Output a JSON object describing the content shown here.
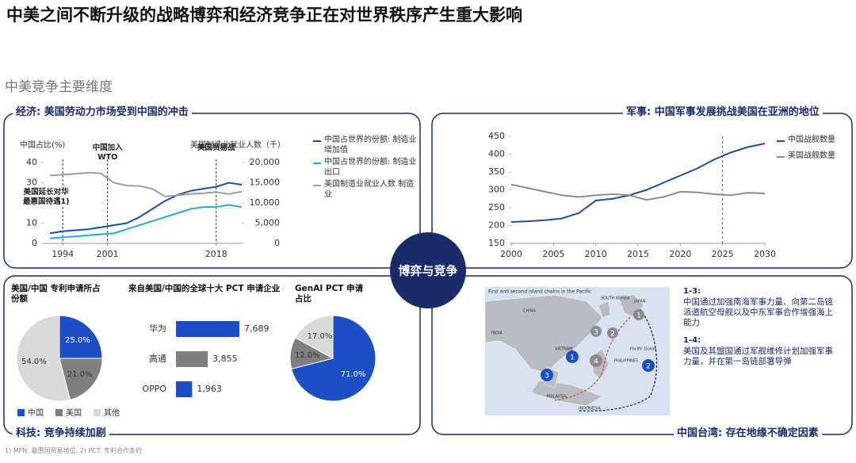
{
  "header": {
    "title": "中美之间不断升级的战略博弈和经济竞争正在对世界秩序产生重大影响",
    "subtitle": "中美竞争主要维度"
  },
  "center": "博弈与竞争",
  "sections": {
    "economy": "经济: 美国劳动力市场受到中国的冲击",
    "military": "军事: 中国军事发展挑战美国在亚洲的地位",
    "technology": "科技: 竞争持续加剧",
    "taiwan": "中国台湾: 存在地缘不确定因素"
  },
  "map": {
    "title": "First and second island chains in the Pacific",
    "places": [
      "CHINA",
      "JAPAN",
      "SOUTH KOREA",
      "INDIA",
      "VIETNAM",
      "PHILIPPINES",
      "MALAYSIA",
      "INDONESIA",
      "Pacific Ocean"
    ],
    "notes": [
      {
        "label": "1-3:",
        "text": "中国通过加强南海军事力量、向第二岛链派遣航空母舰以及中东军事合作增强海上能力"
      },
      {
        "label": "1-4:",
        "text": "美国及其盟国通过军舰维修计划加强军事力量，并在第一岛链部署导弹"
      }
    ]
  },
  "footnote": "1) MFN: 最惠国贸易地位, 2) PCT: 专利合作条约",
  "chart_data": [
    {
      "type": "line",
      "y_label": "中国占比(%)",
      "y2_label": "美国制造业就业人数（千）",
      "x": [
        1992,
        1994,
        1996,
        1998,
        2000,
        2002,
        2004,
        2006,
        2008,
        2010,
        2012,
        2014,
        2016,
        2018,
        2020,
        2022
      ],
      "xlim": [
        1991,
        2022
      ],
      "xticks": [
        1994,
        2001,
        2018
      ],
      "ylim": [
        0,
        40
      ],
      "yticks": [
        0,
        10,
        20,
        30,
        40
      ],
      "y2lim": [
        0,
        20000
      ],
      "y2ticks": [
        0,
        {
          "value": 5000,
          "label": "5,000"
        },
        {
          "value": 10000,
          "label": "10,000"
        },
        {
          "value": 15000,
          "label": "15,000"
        },
        {
          "value": 20000,
          "label": "20,000"
        }
      ],
      "annotations": [
        {
          "text": "美国延长对华最惠国待遇1)",
          "x": 1994
        },
        {
          "text": "中国加入WTO",
          "x": 2001
        },
        {
          "text": "美国贸易战",
          "x": 2018
        }
      ],
      "series": [
        {
          "name": "中国占世界的份额: 制造业增加值",
          "color": "#1f4e9c",
          "values": [
            5,
            6,
            6.5,
            7,
            8,
            9,
            10,
            13,
            17,
            21,
            24,
            26,
            27,
            28,
            30,
            29
          ]
        },
        {
          "name": "中国占世界的份额: 制造业出口",
          "color": "#29a8e0",
          "values": [
            2.5,
            3,
            3.5,
            4,
            4.5,
            5,
            7,
            9,
            11,
            13,
            15,
            17,
            18,
            18,
            19,
            18
          ]
        },
        {
          "name": "美国制造业就业人数 制造业",
          "color": "#9e9e9e",
          "axis": "y2",
          "values": [
            16800,
            17000,
            17200,
            17500,
            17300,
            15000,
            14300,
            14200,
            13500,
            11600,
            11900,
            12200,
            12400,
            12700,
            12200,
            12800
          ]
        }
      ]
    },
    {
      "type": "line",
      "x": [
        2000,
        2002,
        2004,
        2006,
        2008,
        2010,
        2012,
        2014,
        2016,
        2018,
        2020,
        2022,
        2024,
        2026,
        2028,
        2030
      ],
      "xlim": [
        2000,
        2030
      ],
      "xticks": [
        2000,
        2005,
        2010,
        2015,
        2020,
        2025,
        2030
      ],
      "ylim": [
        150,
        450
      ],
      "yticks": [
        150,
        200,
        250,
        300,
        350,
        400,
        450
      ],
      "reference_x": 2025,
      "series": [
        {
          "name": "中国战舰数量",
          "color": "#1f4e9c",
          "values": [
            210,
            212,
            215,
            220,
            235,
            270,
            275,
            285,
            300,
            320,
            340,
            360,
            385,
            405,
            420,
            430
          ]
        },
        {
          "name": "美国战舰数量",
          "color": "#8c8c8c",
          "values": [
            315,
            305,
            295,
            285,
            280,
            285,
            288,
            285,
            272,
            280,
            295,
            293,
            288,
            285,
            292,
            290
          ]
        }
      ]
    },
    {
      "type": "pie",
      "title": "美国/中国 专利申请所占份额",
      "categories": [
        "中国",
        "美国",
        "其他"
      ],
      "values": [
        25.0,
        21.0,
        54.0
      ],
      "value_labels": [
        "25.0%",
        "21.0%",
        "54.0%"
      ],
      "colors": [
        "#1d4fc4",
        "#7f7f7f",
        "#d9d9d9"
      ]
    },
    {
      "type": "hbar",
      "title": "来自美国/中国的全球十大 PCT 申请企业",
      "categories": [
        "华为",
        "高通",
        "OPPO"
      ],
      "values": [
        7689,
        3855,
        1963
      ],
      "value_labels": [
        "7,689",
        "3,855",
        "1,963"
      ],
      "colors": [
        "#1d4fc4",
        "#7f7f7f",
        "#1d4fc4"
      ]
    },
    {
      "type": "pie",
      "title": "GenAI PCT 申请占比",
      "values": [
        71.0,
        12.0,
        17.0
      ],
      "value_labels": [
        "71.0%",
        "12.0%",
        "17.0%"
      ],
      "colors": [
        "#1d4fc4",
        "#7f7f7f",
        "#d9d9d9"
      ]
    }
  ]
}
